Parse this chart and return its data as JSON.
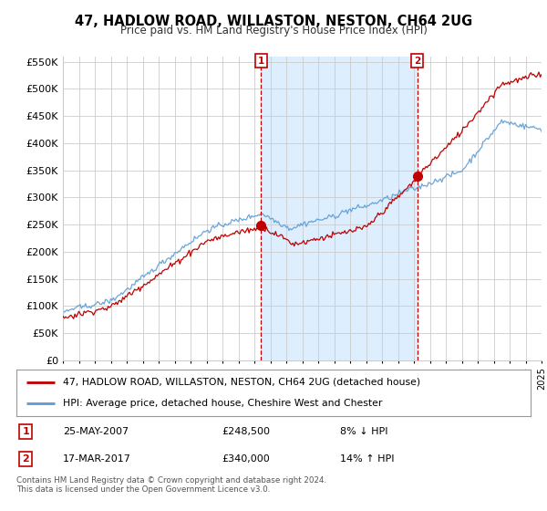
{
  "title": "47, HADLOW ROAD, WILLASTON, NESTON, CH64 2UG",
  "subtitle": "Price paid vs. HM Land Registry's House Price Index (HPI)",
  "ylim": [
    0,
    560000
  ],
  "yticks": [
    0,
    50000,
    100000,
    150000,
    200000,
    250000,
    300000,
    350000,
    400000,
    450000,
    500000,
    550000
  ],
  "sale1_date": 2007.42,
  "sale1_price": 248500,
  "sale1_label": "1",
  "sale1_text": "25-MAY-2007",
  "sale1_price_str": "£248,500",
  "sale1_pct": "8% ↓ HPI",
  "sale2_date": 2017.21,
  "sale2_price": 340000,
  "sale2_label": "2",
  "sale2_text": "17-MAR-2017",
  "sale2_price_str": "£340,000",
  "sale2_pct": "14% ↑ HPI",
  "hpi_color": "#5b9bd5",
  "price_color": "#c00000",
  "shade_color": "#ddeeff",
  "background_color": "#ffffff",
  "grid_color": "#cccccc",
  "legend_label_price": "47, HADLOW ROAD, WILLASTON, NESTON, CH64 2UG (detached house)",
  "legend_label_hpi": "HPI: Average price, detached house, Cheshire West and Chester",
  "footnote": "Contains HM Land Registry data © Crown copyright and database right 2024.\nThis data is licensed under the Open Government Licence v3.0.",
  "xmin": 1995,
  "xmax": 2025
}
